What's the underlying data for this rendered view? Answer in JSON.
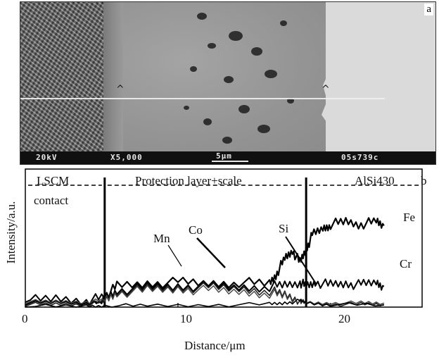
{
  "sem_panel": {
    "panel_letter": "a",
    "databar": {
      "voltage": "20kV",
      "magnification": "X5,000",
      "scale": "5μm",
      "micrograph_id": "05s739c"
    }
  },
  "plot_panel": {
    "panel_letter": "b",
    "region_labels": {
      "lscm_line1": "LSCM",
      "lscm_line2": "contact",
      "protection": "Protection layer+scale",
      "alloy": "AlSi430"
    }
  },
  "chart_data": {
    "type": "line",
    "title": "",
    "xlabel": "Distance/μm",
    "ylabel": "Intensity/a.u.",
    "xlim": [
      0,
      26
    ],
    "ylim": [
      0,
      10
    ],
    "xticks": [
      0,
      10,
      20
    ],
    "xtick_labels": [
      "0",
      "10",
      "20"
    ],
    "y_ticks_shown": false,
    "grid": false,
    "boundaries": [
      5.2,
      18.4
    ],
    "element_labels": [
      "Mn",
      "Co",
      "Si",
      "Fe",
      "Cr"
    ],
    "series": [
      {
        "name": "Fe",
        "x": [
          0,
          2,
          4,
          5,
          5.2,
          6,
          8,
          10,
          12,
          14,
          16,
          16.5,
          17,
          17.5,
          18,
          18.4,
          18.8,
          19.5,
          20,
          21,
          22,
          23,
          23.5
        ],
        "y": [
          0.3,
          0.35,
          0.3,
          0.3,
          0.8,
          1.5,
          1.7,
          1.8,
          1.7,
          1.8,
          1.7,
          2.5,
          3.5,
          4.1,
          3.2,
          4.2,
          5.2,
          5.7,
          6.0,
          6.2,
          6.0,
          6.2,
          5.9
        ]
      },
      {
        "name": "Cr",
        "x": [
          0,
          2,
          4,
          5.2,
          6,
          8,
          10,
          12,
          14,
          16,
          17,
          18,
          18.4,
          19,
          20,
          21,
          22,
          23,
          23.5
        ],
        "y": [
          0.5,
          0.6,
          0.5,
          0.7,
          1.2,
          1.4,
          1.5,
          1.5,
          1.4,
          1.5,
          1.6,
          1.8,
          1.5,
          1.8,
          1.6,
          1.7,
          1.6,
          1.8,
          1.5
        ]
      },
      {
        "name": "Mn",
        "x": [
          0,
          2,
          4,
          5.2,
          6,
          8,
          10,
          12,
          14,
          16,
          17,
          18,
          18.4,
          20,
          22,
          23.5
        ],
        "y": [
          0.2,
          0.2,
          0.2,
          0.4,
          1.1,
          1.3,
          1.4,
          1.4,
          1.3,
          1.2,
          0.9,
          0.5,
          0.3,
          0.2,
          0.2,
          0.2
        ]
      },
      {
        "name": "Co",
        "x": [
          0,
          2,
          4,
          5.2,
          6,
          8,
          10,
          12,
          14,
          16,
          17,
          18,
          18.4,
          20,
          22,
          23.5
        ],
        "y": [
          0.4,
          0.4,
          0.4,
          0.5,
          1.0,
          1.2,
          1.3,
          1.2,
          1.1,
          1.0,
          0.8,
          0.4,
          0.3,
          0.3,
          0.3,
          0.3
        ]
      },
      {
        "name": "Si",
        "x": [
          0,
          4,
          5.2,
          8,
          12,
          16,
          17,
          18,
          18.4,
          20,
          23.5
        ],
        "y": [
          0.05,
          0.05,
          0.1,
          0.1,
          0.15,
          0.2,
          0.3,
          0.45,
          0.3,
          0.2,
          0.15
        ]
      }
    ]
  }
}
